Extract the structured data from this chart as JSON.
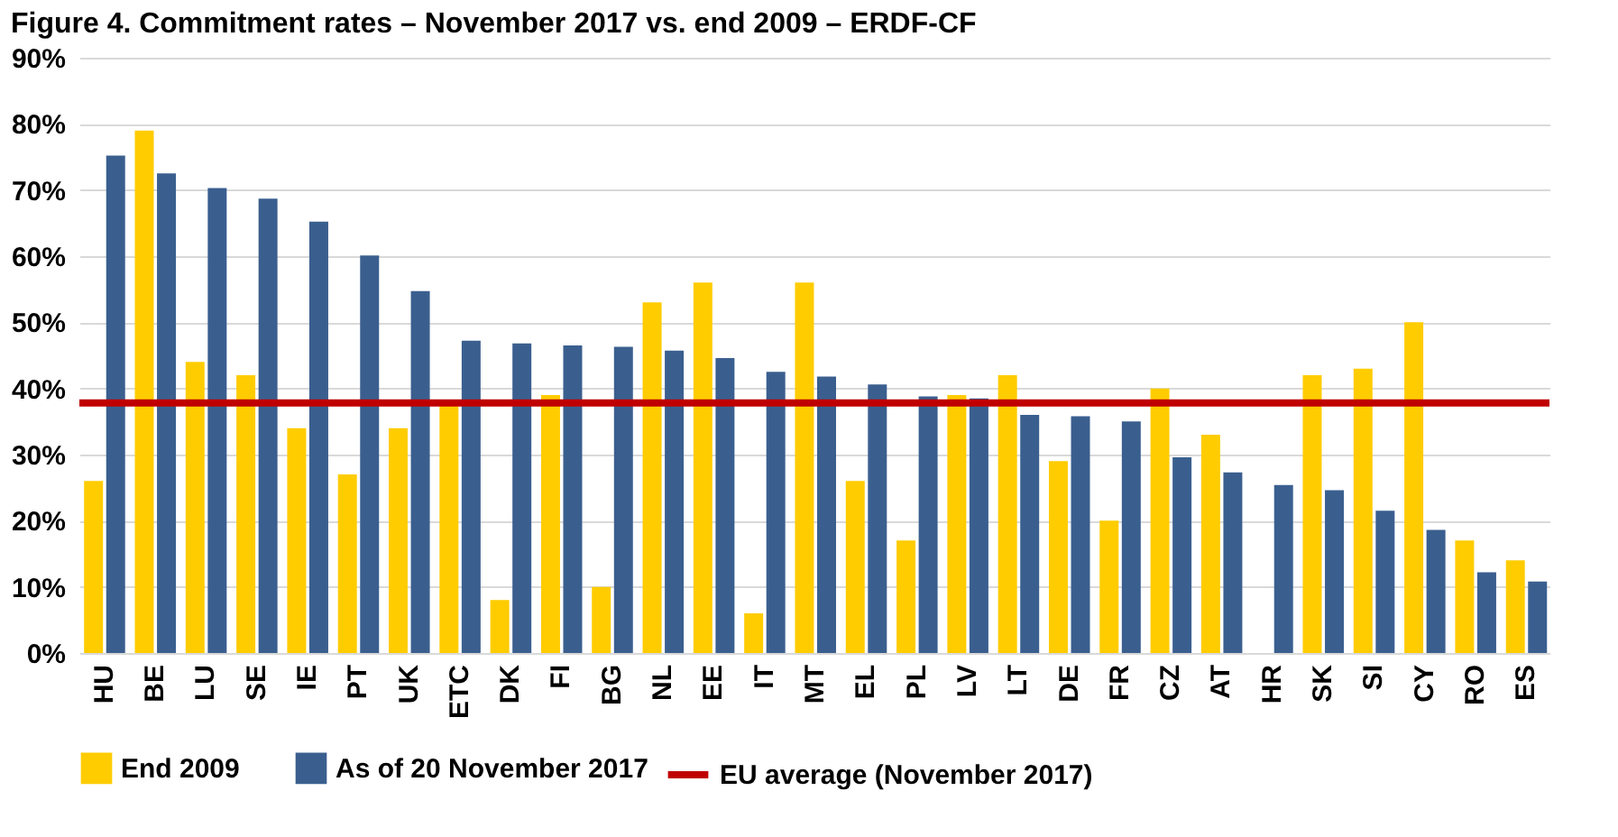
{
  "chart_data": {
    "type": "bar",
    "title": "Figure 4. Commitment rates – November 2017 vs. end 2009 – ERDF-CF",
    "categories": [
      "HU",
      "BE",
      "LU",
      "SE",
      "IE",
      "PT",
      "UK",
      "ETC",
      "DK",
      "FI",
      "BG",
      "NL",
      "EE",
      "IT",
      "MT",
      "EL",
      "PL",
      "LV",
      "LT",
      "DE",
      "FR",
      "CZ",
      "AT",
      "HR",
      "SK",
      "SI",
      "CY",
      "RO",
      "ES"
    ],
    "series": [
      {
        "name": "End 2009",
        "color": "#ffcc00",
        "values": [
          26,
          79,
          44,
          42,
          34,
          27,
          34,
          38,
          8,
          39,
          10,
          53,
          56,
          6,
          56,
          26,
          17,
          39,
          42,
          29,
          20,
          40,
          33,
          null,
          42,
          43,
          50,
          17,
          14
        ]
      },
      {
        "name": "As of 20 November 2017",
        "color": "#3a5f8f",
        "values": [
          75.2,
          72.5,
          70.3,
          68.7,
          65.2,
          60.1,
          54.7,
          47.2,
          46.8,
          46.5,
          46.3,
          45.7,
          44.6,
          42.5,
          41.8,
          40.6,
          38.8,
          38.5,
          36,
          35.8,
          35,
          29.6,
          27.3,
          25.4,
          24.6,
          21.5,
          18.6,
          12.2,
          10.8
        ]
      }
    ],
    "ref_lines": [
      {
        "axis": "y",
        "value": 37.8,
        "label": "EU average (November 2017)",
        "color": "#c00000",
        "line_style": "solid"
      }
    ],
    "ylim": [
      0,
      90
    ],
    "yticks": [
      {
        "value": 0,
        "label": "0%"
      },
      {
        "value": 10,
        "label": "10%"
      },
      {
        "value": 20,
        "label": "20%"
      },
      {
        "value": 30,
        "label": "30%"
      },
      {
        "value": 40,
        "label": "40%"
      },
      {
        "value": 50,
        "label": "50%"
      },
      {
        "value": 60,
        "label": "60%"
      },
      {
        "value": 70,
        "label": "70%"
      },
      {
        "value": 80,
        "label": "80%"
      },
      {
        "value": 90,
        "label": "90%"
      }
    ],
    "grid": "y",
    "legend": "bottom"
  }
}
